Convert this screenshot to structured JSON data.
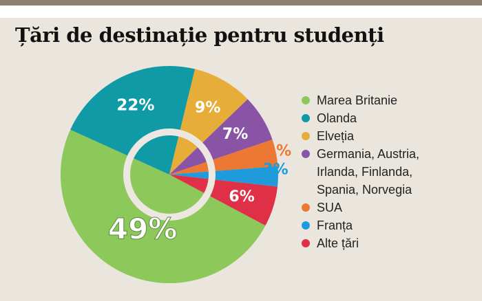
{
  "chart_data": {
    "type": "pie",
    "title": "Țări de destinație pentru studenți",
    "legend_position": "right",
    "slices": [
      {
        "name": "Marea Britanie",
        "value": 49,
        "label": "49%",
        "color": "#8dc95a"
      },
      {
        "name": "Olanda",
        "value": 22,
        "label": "22%",
        "color": "#0f9aa6"
      },
      {
        "name": "Elveția",
        "value": 9,
        "label": "9%",
        "color": "#e6ad38"
      },
      {
        "name": "Germania, Austria,\nIrlanda, Finlanda,\nSpania, Norvegia",
        "value": 7,
        "label": "7%",
        "color": "#8a54a6"
      },
      {
        "name": "SUA",
        "value": 4,
        "label": "4%",
        "color": "#ed7834"
      },
      {
        "name": "Franța",
        "value": 3,
        "label": "3%",
        "color": "#1f9bdb"
      },
      {
        "name": "Alte țări",
        "value": 6,
        "label": "6%",
        "color": "#e03047"
      }
    ]
  }
}
